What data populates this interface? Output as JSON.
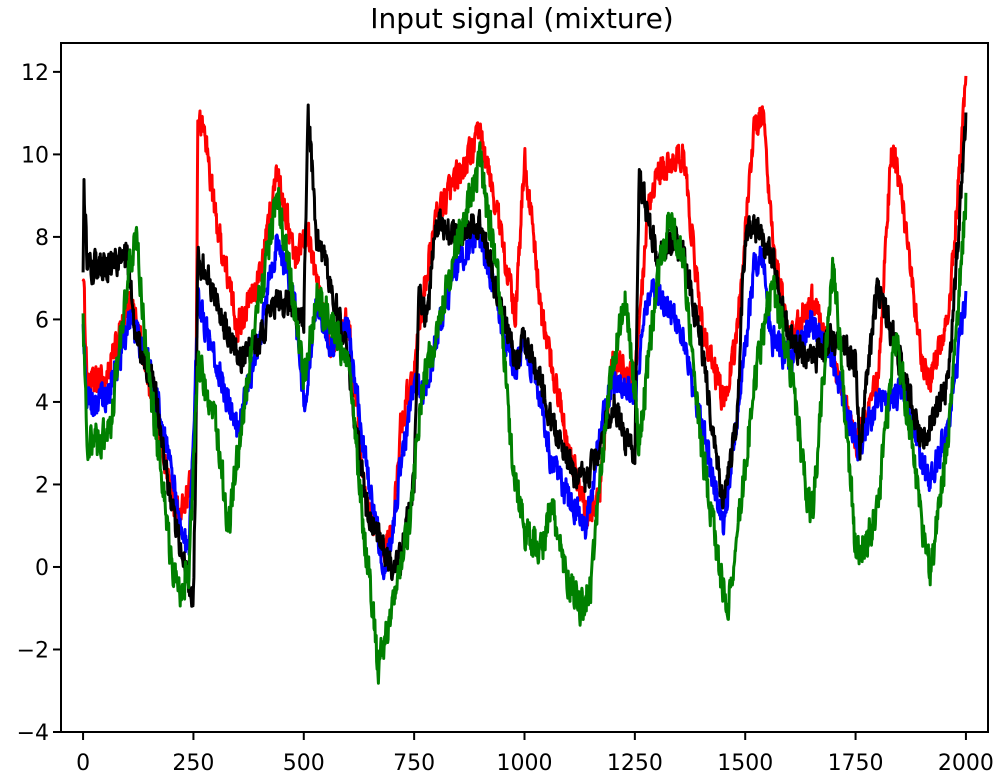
{
  "chart_data": {
    "type": "line",
    "title": "Input signal (mixture)",
    "xlabel": "",
    "ylabel": "",
    "xlim": [
      -50,
      2050
    ],
    "ylim": [
      -4,
      12.7
    ],
    "grid": false,
    "x_ticks": [
      0,
      250,
      500,
      750,
      1000,
      1250,
      1500,
      1750,
      2000
    ],
    "x_tick_labels": [
      "0",
      "250",
      "500",
      "750",
      "1000",
      "1250",
      "1500",
      "1750",
      "2000"
    ],
    "y_ticks": [
      -4,
      -2,
      0,
      2,
      4,
      6,
      8,
      10,
      12
    ],
    "y_tick_labels": [
      "−4",
      "−2",
      "0",
      "2",
      "4",
      "6",
      "8",
      "10",
      "12"
    ],
    "noise_amplitude": [
      0.5,
      0.5,
      0.5,
      0.6
    ],
    "series": [
      {
        "color": "#ff0000",
        "x": [
          0,
          10,
          50,
          110,
          150,
          200,
          220,
          240,
          255,
          260,
          275,
          300,
          350,
          400,
          440,
          480,
          500,
          510,
          530,
          560,
          600,
          640,
          680,
          700,
          720,
          750,
          770,
          800,
          850,
          900,
          940,
          980,
          1000,
          1040,
          1060,
          1100,
          1140,
          1170,
          1200,
          1250,
          1280,
          1300,
          1360,
          1400,
          1450,
          1480,
          1520,
          1540,
          1560,
          1600,
          1650,
          1700,
          1750,
          1760,
          1800,
          1830,
          1840,
          1860,
          1900,
          1920,
          1960,
          2000
        ],
        "values": [
          7.2,
          4.4,
          4.5,
          6.5,
          4.5,
          1.8,
          1.2,
          1.8,
          2.8,
          10.8,
          10.6,
          8.5,
          5.8,
          7.0,
          9.6,
          7.5,
          8.0,
          8.1,
          6.8,
          5.5,
          6.0,
          1.8,
          0.3,
          1.0,
          3.5,
          4.8,
          6.5,
          8.5,
          9.5,
          10.5,
          8.5,
          6.0,
          10.0,
          6.0,
          5.0,
          3.0,
          1.2,
          1.8,
          5.0,
          4.5,
          8.5,
          9.5,
          10.0,
          6.0,
          4.0,
          5.5,
          10.7,
          11.0,
          8.0,
          5.5,
          6.5,
          5.0,
          3.0,
          3.2,
          4.5,
          9.9,
          9.8,
          8.5,
          5.0,
          4.6,
          6.0,
          11.7
        ]
      },
      {
        "color": "#0000ff",
        "x": [
          0,
          10,
          50,
          110,
          150,
          200,
          220,
          240,
          260,
          300,
          350,
          400,
          440,
          480,
          500,
          530,
          560,
          600,
          640,
          680,
          700,
          720,
          750,
          770,
          800,
          850,
          900,
          940,
          980,
          1000,
          1040,
          1060,
          1100,
          1140,
          1170,
          1200,
          1250,
          1280,
          1300,
          1360,
          1400,
          1450,
          1480,
          1520,
          1540,
          1560,
          1600,
          1650,
          1700,
          1750,
          1760,
          1800,
          1830,
          1860,
          1900,
          1920,
          1960,
          2000
        ],
        "values": [
          5.8,
          4.0,
          4.0,
          6.0,
          4.8,
          2.5,
          1.0,
          0.2,
          6.5,
          5.0,
          3.3,
          5.5,
          8.0,
          6.3,
          3.8,
          6.5,
          5.4,
          5.8,
          2.5,
          0.0,
          0.6,
          2.5,
          4.5,
          4.2,
          5.5,
          7.5,
          8.0,
          6.2,
          4.8,
          5.5,
          4.0,
          2.5,
          1.7,
          1.0,
          3.2,
          4.5,
          4.2,
          6.5,
          6.8,
          5.5,
          3.5,
          1.0,
          3.5,
          7.2,
          7.5,
          5.5,
          5.0,
          6.0,
          5.0,
          3.0,
          3.0,
          4.0,
          4.0,
          4.4,
          2.5,
          2.0,
          3.5,
          6.5
        ]
      },
      {
        "color": "#000000",
        "x": [
          0,
          2,
          10,
          50,
          100,
          120,
          160,
          200,
          230,
          250,
          255,
          260,
          300,
          350,
          400,
          440,
          480,
          500,
          510,
          520,
          530,
          560,
          600,
          640,
          680,
          700,
          720,
          750,
          760,
          780,
          800,
          850,
          900,
          940,
          980,
          1000,
          1040,
          1060,
          1100,
          1140,
          1170,
          1200,
          1250,
          1260,
          1300,
          1340,
          1360,
          1400,
          1450,
          1480,
          1500,
          1520,
          1560,
          1600,
          1650,
          1700,
          1750,
          1760,
          1800,
          1850,
          1900,
          1920,
          1960,
          2000
        ],
        "values": [
          7.0,
          9.2,
          7.3,
          7.2,
          7.5,
          5.5,
          4.5,
          1.5,
          0.0,
          -0.7,
          2.5,
          7.6,
          6.5,
          5.0,
          5.5,
          6.5,
          6.2,
          6.0,
          11.0,
          9.5,
          7.8,
          7.0,
          5.0,
          1.5,
          0.5,
          0.0,
          0.2,
          2.0,
          6.5,
          6.0,
          8.5,
          8.0,
          8.3,
          6.5,
          5.0,
          5.5,
          4.5,
          3.5,
          2.5,
          2.0,
          3.0,
          4.0,
          2.5,
          9.5,
          7.5,
          8.0,
          7.5,
          5.5,
          1.5,
          3.5,
          8.0,
          8.3,
          7.5,
          5.5,
          5.0,
          5.5,
          5.0,
          3.0,
          6.8,
          5.0,
          3.0,
          3.5,
          4.5,
          10.8
        ]
      },
      {
        "color": "#008000",
        "x": [
          0,
          10,
          30,
          60,
          100,
          120,
          150,
          180,
          200,
          220,
          240,
          260,
          300,
          330,
          360,
          400,
          440,
          470,
          500,
          530,
          560,
          600,
          640,
          670,
          700,
          740,
          770,
          800,
          850,
          900,
          940,
          970,
          1000,
          1040,
          1060,
          1100,
          1130,
          1150,
          1170,
          1200,
          1230,
          1260,
          1300,
          1330,
          1360,
          1400,
          1440,
          1460,
          1480,
          1520,
          1560,
          1600,
          1650,
          1700,
          1750,
          1770,
          1800,
          1840,
          1880,
          1900,
          1920,
          1960,
          2000
        ],
        "values": [
          5.8,
          3.0,
          3.0,
          3.2,
          7.0,
          8.0,
          4.5,
          2.0,
          0.0,
          -0.5,
          0.0,
          5.0,
          3.5,
          1.0,
          3.5,
          6.5,
          9.0,
          7.0,
          4.5,
          6.5,
          6.0,
          5.0,
          0.5,
          -2.5,
          -1.0,
          1.0,
          4.5,
          5.5,
          8.0,
          9.8,
          7.0,
          2.8,
          0.8,
          0.5,
          1.5,
          -0.3,
          -1.0,
          -0.5,
          2.0,
          5.0,
          6.5,
          3.0,
          7.0,
          8.5,
          7.5,
          3.0,
          0.0,
          -1.0,
          0.5,
          4.5,
          6.8,
          5.0,
          1.0,
          7.5,
          0.5,
          0.5,
          1.5,
          5.5,
          3.0,
          1.0,
          -0.1,
          3.0,
          9.0
        ]
      }
    ]
  }
}
